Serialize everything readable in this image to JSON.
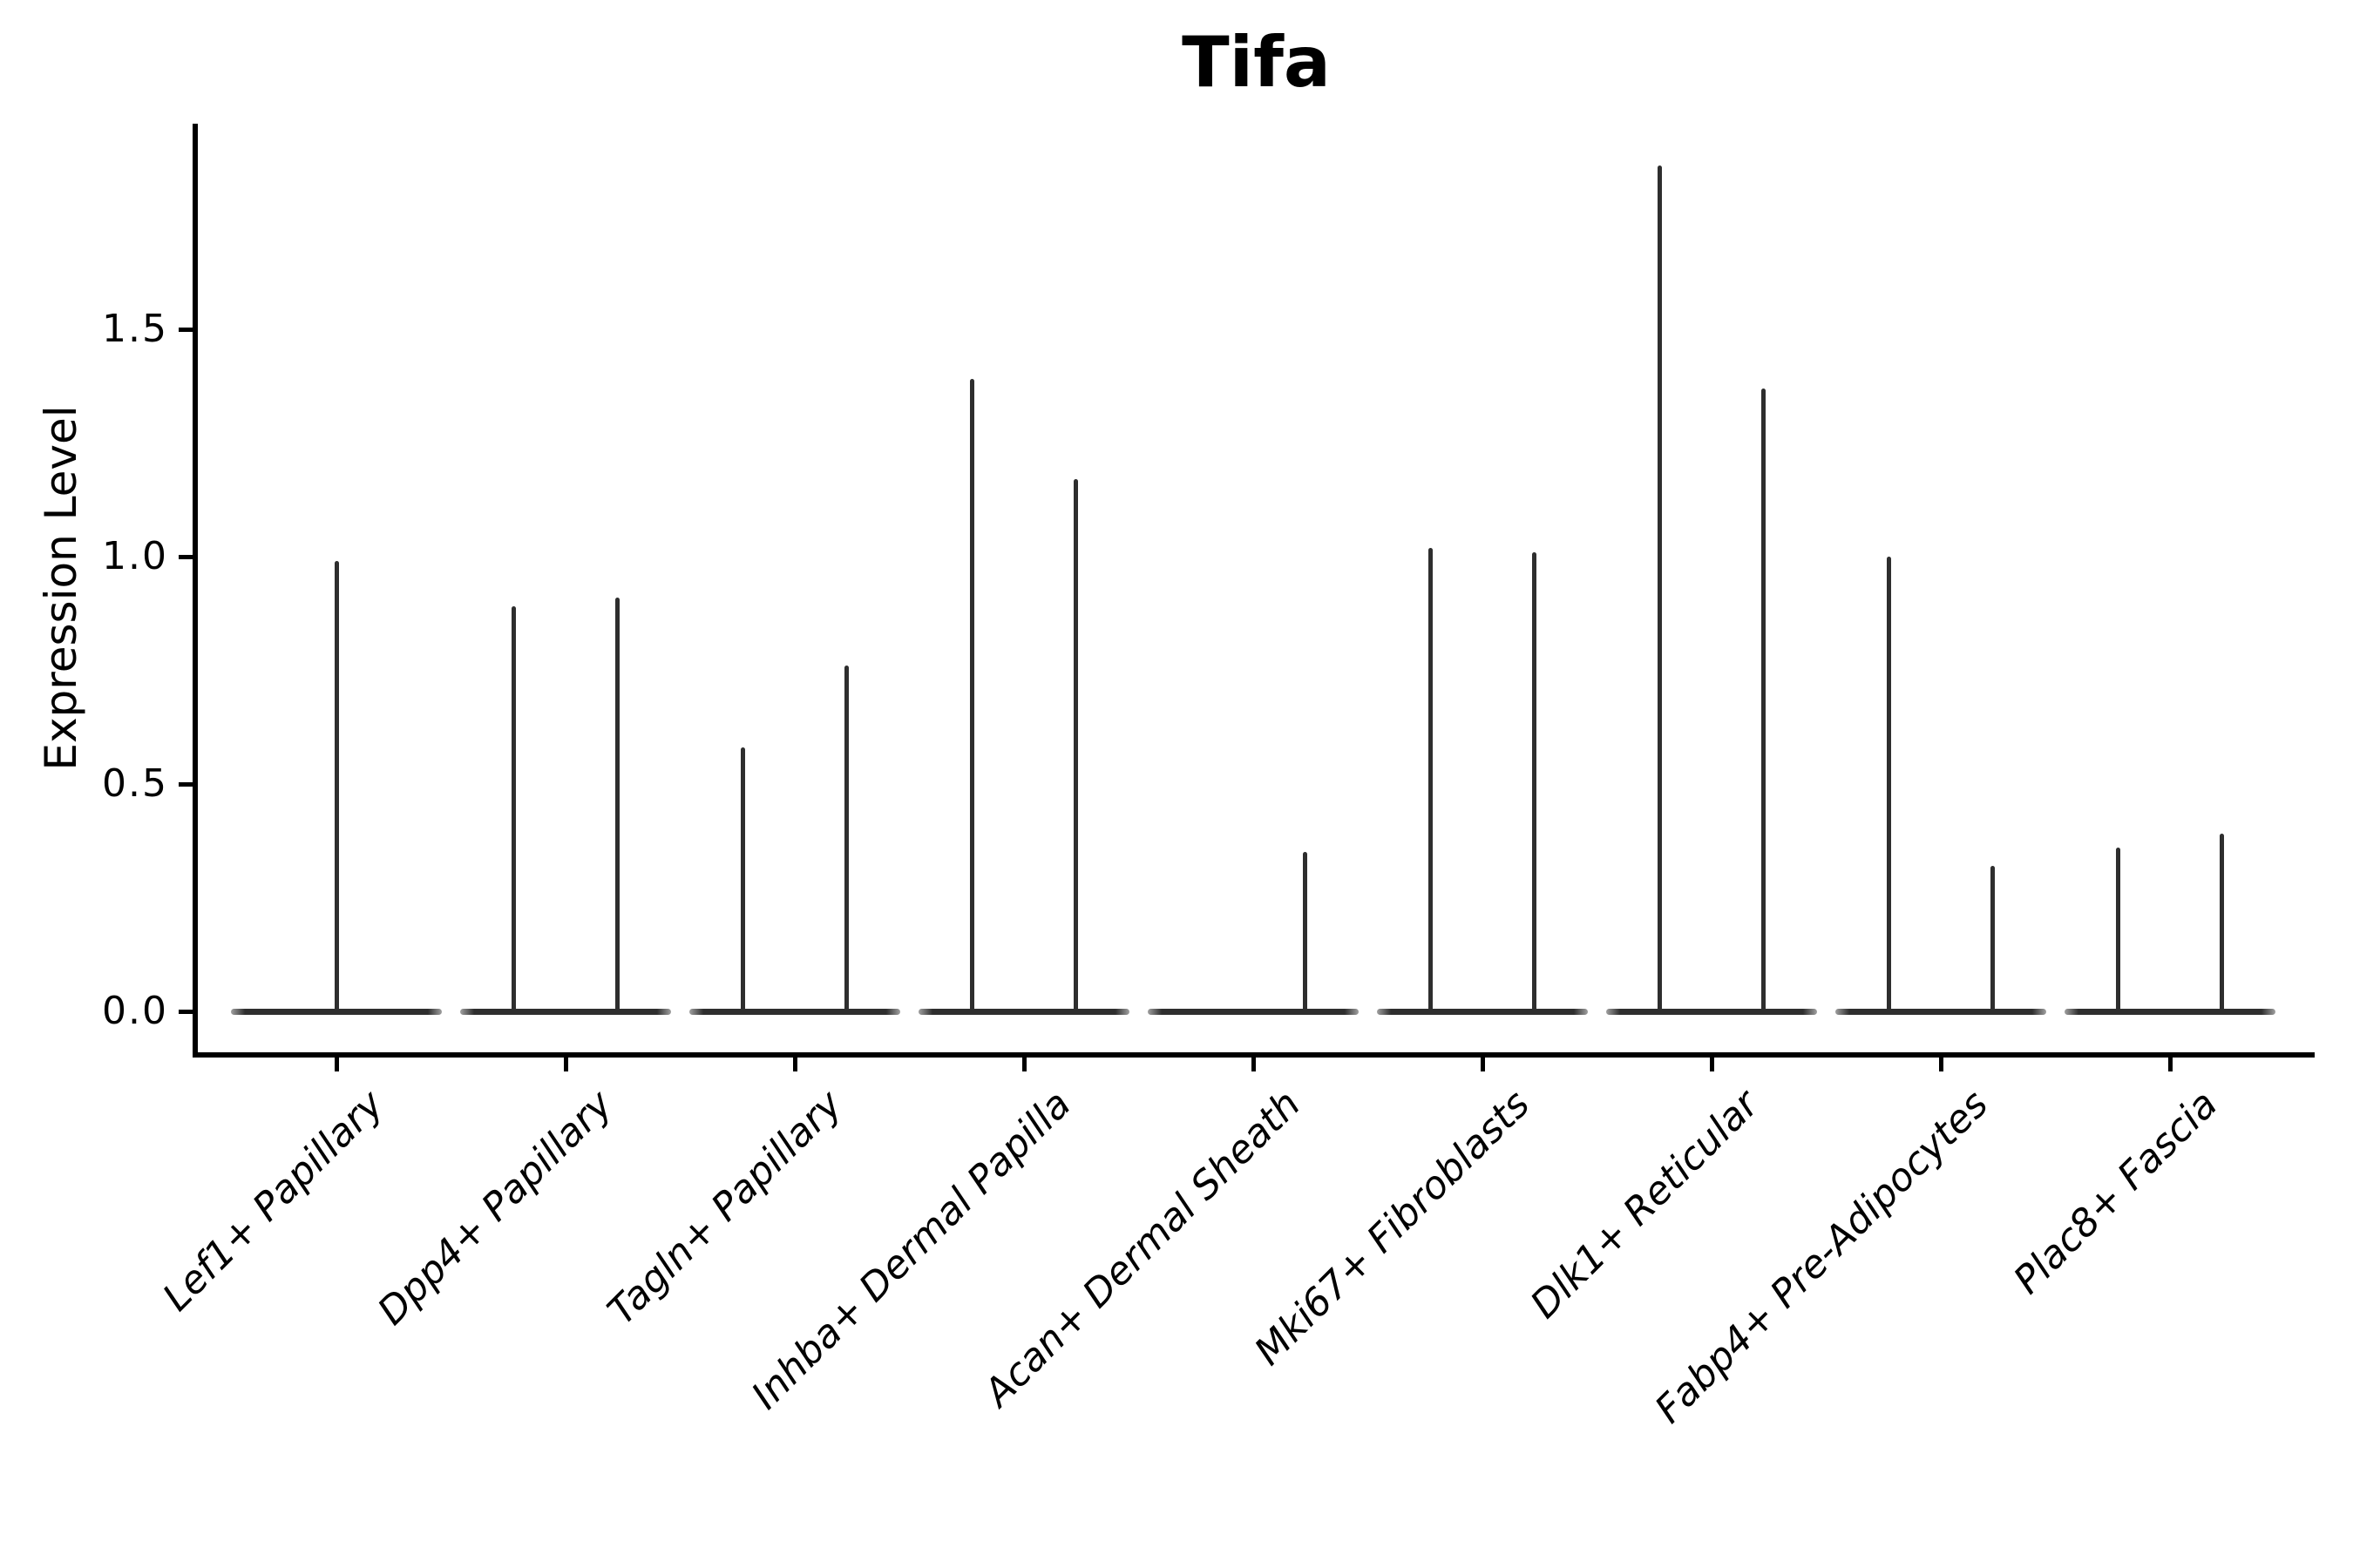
{
  "title": "Tifa",
  "colors": {
    "background": "#ffffff",
    "axis": "#000000",
    "text": "#000000",
    "violin_stroke": "#2e2e2e"
  },
  "chart_data": {
    "type": "violin",
    "title": "Tifa",
    "xlabel": "",
    "ylabel": "Expression Level",
    "ylim": [
      0,
      1.95
    ],
    "grid": false,
    "legend": "none",
    "yticks": [
      0.0,
      0.5,
      1.0,
      1.5
    ],
    "ytick_labels": [
      "0.0",
      "0.5",
      "1.0",
      "1.5"
    ],
    "categories": [
      "Lef1+ Papillary",
      "Dpp4+ Papillary",
      "Tagln+ Papillary",
      "Inhba+ Dermal Papilla",
      "Acan+ Dermal Sheath",
      "Mki67+ Fibroblasts",
      "Dlk1+ Reticular",
      "Fabp4+ Pre-Adipocytes",
      "Plac8+ Fascia"
    ],
    "description": "Expression mostly zero in all cell types: each violin is a flat line at 0 with thin density spikes reaching the few expressing cells.",
    "violins": [
      {
        "category": "Lef1+ Papillary",
        "zero_line": true,
        "spikes": [
          {
            "offset": 0.0,
            "peak": 0.99
          }
        ]
      },
      {
        "category": "Dpp4+ Papillary",
        "zero_line": true,
        "spikes": [
          {
            "offset": -0.225,
            "peak": 0.89
          },
          {
            "offset": 0.225,
            "peak": 0.91
          }
        ]
      },
      {
        "category": "Tagln+ Papillary",
        "zero_line": true,
        "spikes": [
          {
            "offset": -0.225,
            "peak": 0.58
          },
          {
            "offset": 0.225,
            "peak": 0.76
          }
        ]
      },
      {
        "category": "Inhba+ Dermal Papilla",
        "zero_line": true,
        "spikes": [
          {
            "offset": -0.225,
            "peak": 1.39
          },
          {
            "offset": 0.225,
            "peak": 1.17
          }
        ]
      },
      {
        "category": "Acan+ Dermal Sheath",
        "zero_line": true,
        "spikes": [
          {
            "offset": 0.225,
            "peak": 0.35
          }
        ]
      },
      {
        "category": "Mki67+ Fibroblasts",
        "zero_line": true,
        "spikes": [
          {
            "offset": -0.225,
            "peak": 1.02
          },
          {
            "offset": 0.225,
            "peak": 1.01
          }
        ]
      },
      {
        "category": "Dlk1+ Reticular",
        "zero_line": true,
        "spikes": [
          {
            "offset": -0.225,
            "peak": 1.86
          },
          {
            "offset": 0.225,
            "peak": 1.37
          }
        ]
      },
      {
        "category": "Fabp4+ Pre-Adipocytes",
        "zero_line": true,
        "spikes": [
          {
            "offset": -0.225,
            "peak": 1.0
          },
          {
            "offset": 0.225,
            "peak": 0.32
          }
        ]
      },
      {
        "category": "Plac8+ Fascia",
        "zero_line": true,
        "spikes": [
          {
            "offset": -0.225,
            "peak": 0.36
          },
          {
            "offset": 0.225,
            "peak": 0.39
          }
        ]
      }
    ]
  }
}
